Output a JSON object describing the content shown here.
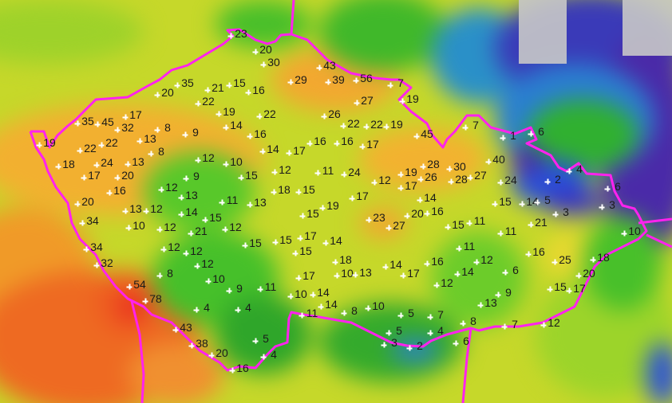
{
  "map": {
    "colors": {
      "border": "#ff22ee",
      "station_marker": "#ffffff",
      "scale_low_purple": "#4a2aa8",
      "scale_blue": "#2a7fd0",
      "scale_green": "#3cbf2a",
      "scale_yellow": "#e4dc28",
      "scale_orange": "#f0a028",
      "scale_red": "#e82020"
    },
    "station_values": [
      "23",
      "20",
      "30",
      "43",
      "29",
      "39",
      "56",
      "7",
      "35",
      "21",
      "15",
      "16",
      "20",
      "22",
      "27",
      "19",
      "19",
      "22",
      "26",
      "22",
      "22",
      "19",
      "45",
      "7",
      "1",
      "6",
      "35",
      "45",
      "17",
      "32",
      "14",
      "16",
      "19",
      "13",
      "8",
      "9",
      "22",
      "22",
      "8",
      "14",
      "17",
      "16",
      "16",
      "17",
      "18",
      "24",
      "13",
      "12",
      "10",
      "28",
      "30",
      "40",
      "4",
      "17",
      "20",
      "9",
      "15",
      "12",
      "11",
      "24",
      "12",
      "19",
      "26",
      "28",
      "27",
      "2",
      "6",
      "16",
      "12",
      "13",
      "18",
      "15",
      "17",
      "24",
      "14",
      "20",
      "11",
      "13",
      "17",
      "15",
      "14",
      "5",
      "3",
      "3",
      "13",
      "12",
      "14",
      "15",
      "19",
      "15",
      "34",
      "23",
      "27",
      "20",
      "16",
      "15",
      "11",
      "21",
      "10",
      "12",
      "21",
      "12",
      "17",
      "15",
      "14",
      "15",
      "11",
      "10",
      "34",
      "12",
      "12",
      "15",
      "11",
      "16",
      "25",
      "18",
      "32",
      "12",
      "18",
      "14",
      "16",
      "12",
      "6",
      "20",
      "8",
      "10",
      "10",
      "13",
      "17",
      "17",
      "14",
      "9",
      "11",
      "12",
      "15",
      "17",
      "54",
      "78",
      "10",
      "14",
      "9",
      "14",
      "8",
      "10",
      "11",
      "13",
      "4",
      "4",
      "5",
      "7",
      "8",
      "7",
      "12",
      "43",
      "5",
      "5",
      "4",
      "38",
      "6",
      "20",
      "4",
      "3",
      "2",
      "16"
    ]
  }
}
